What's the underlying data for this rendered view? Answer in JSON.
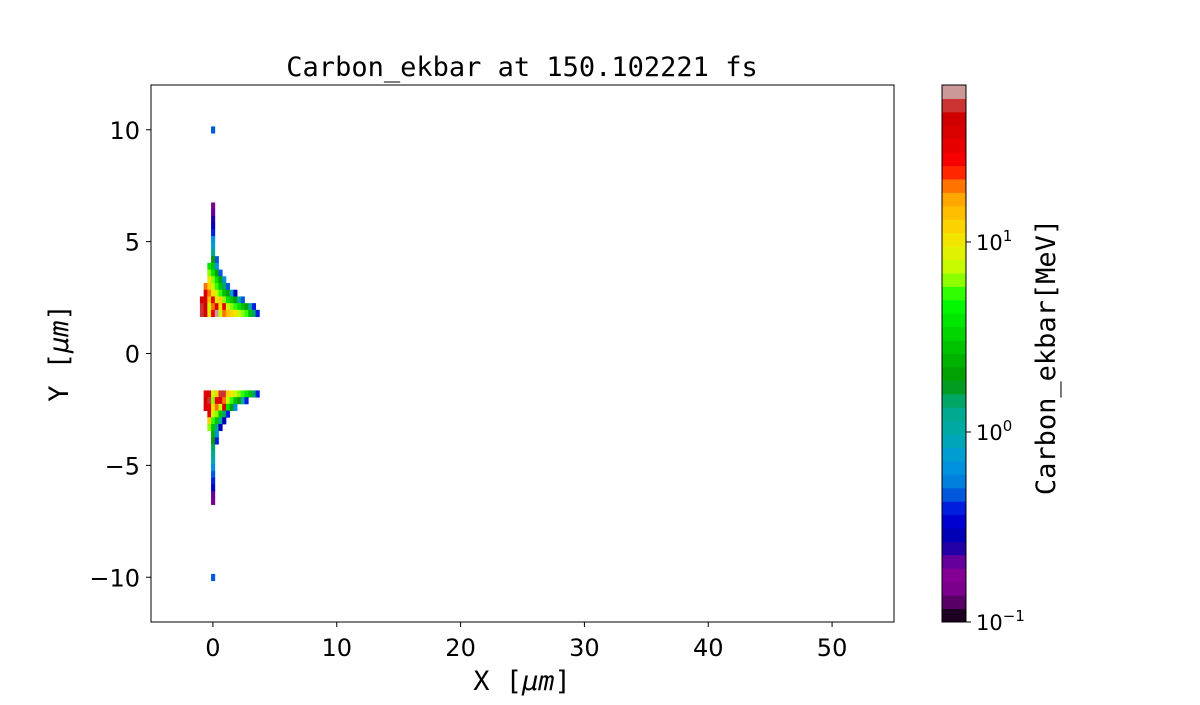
{
  "chart_data": {
    "type": "heatmap",
    "title": "Carbon_ekbar at 150.102221 fs",
    "xlabel": "X  [",
    "xlabel_unit": "μm",
    "xlabel_end": "]",
    "ylabel": "Y  [",
    "ylabel_unit": "μm",
    "ylabel_end": "]",
    "xlim": [
      -5,
      55
    ],
    "ylim": [
      -12,
      12
    ],
    "xticks": [
      0,
      10,
      20,
      30,
      40,
      50
    ],
    "xtick_labels": [
      "0",
      "10",
      "20",
      "30",
      "40",
      "50"
    ],
    "yticks": [
      10,
      5,
      0,
      -5,
      -10
    ],
    "ytick_labels": [
      "10",
      "5",
      "0",
      "−5",
      "−10"
    ],
    "colorbar": {
      "label": "Carbon_ekbar[MeV]",
      "scale": "log",
      "range": [
        0.1,
        67
      ],
      "ticks": [
        0.1,
        1,
        10
      ],
      "tick_labels": [
        {
          "base": "10",
          "exp": "−1"
        },
        {
          "base": "10",
          "exp": "0"
        },
        {
          "base": "10",
          "exp": "1"
        }
      ],
      "colormap": "nipy_spectral",
      "levels": 40
    },
    "cell_size_um": 0.3,
    "rows": [
      {
        "y": 10.0,
        "x0": 0,
        "v": [
          0.5
        ]
      },
      {
        "y": 6.6,
        "x0": 0,
        "v": [
          0.15
        ]
      },
      {
        "y": 6.3,
        "x0": 0,
        "v": [
          0.2
        ]
      },
      {
        "y": 6.0,
        "x0": 0,
        "v": [
          0.25
        ]
      },
      {
        "y": 5.7,
        "x0": 0,
        "v": [
          0.3
        ]
      },
      {
        "y": 5.4,
        "x0": 0,
        "v": [
          0.4
        ]
      },
      {
        "y": 5.1,
        "x0": 0,
        "v": [
          0.6
        ]
      },
      {
        "y": 4.8,
        "x0": 0,
        "v": [
          0.8
        ]
      },
      {
        "y": 4.5,
        "x0": 0,
        "v": [
          1.2
        ]
      },
      {
        "y": 4.2,
        "x0": 0,
        "v": [
          2,
          0.5
        ]
      },
      {
        "y": 3.9,
        "x0": -0.3,
        "v": [
          4,
          3,
          0.6
        ]
      },
      {
        "y": 3.6,
        "x0": -0.3,
        "v": [
          6,
          4,
          2,
          0.5
        ]
      },
      {
        "y": 3.3,
        "x0": -0.3,
        "v": [
          10,
          6,
          4,
          2,
          0.6
        ]
      },
      {
        "y": 3.0,
        "x0": -0.6,
        "v": [
          20,
          12,
          8,
          5,
          3,
          1.5,
          0.5
        ]
      },
      {
        "y": 2.7,
        "x0": -0.6,
        "v": [
          40,
          20,
          10,
          8,
          5,
          3,
          2,
          0.8,
          0.3
        ]
      },
      {
        "y": 2.4,
        "x0": -0.9,
        "v": [
          45,
          40,
          15,
          30,
          10,
          12,
          6,
          4,
          3,
          2,
          1,
          0.5
        ]
      },
      {
        "y": 2.1,
        "x0": -0.9,
        "v": [
          50,
          45,
          8,
          20,
          40,
          10,
          30,
          8,
          6,
          5,
          4,
          3,
          2,
          1,
          0.4
        ]
      },
      {
        "y": 1.8,
        "x0": -0.9,
        "v": [
          50,
          40,
          10,
          30,
          60,
          8,
          20,
          15,
          12,
          10,
          8,
          6,
          5,
          3,
          1.5,
          0.4
        ]
      },
      {
        "y": -1.8,
        "x0": -0.6,
        "v": [
          30,
          40,
          8,
          12,
          50,
          55,
          12,
          10,
          8,
          6,
          5,
          4,
          3,
          1.5,
          0.4
        ]
      },
      {
        "y": -2.1,
        "x0": -0.6,
        "v": [
          45,
          50,
          6,
          30,
          40,
          20,
          8,
          5,
          3,
          2,
          1,
          0.4
        ]
      },
      {
        "y": -2.4,
        "x0": -0.6,
        "v": [
          40,
          30,
          10,
          20,
          8,
          40,
          4,
          2,
          0.6
        ]
      },
      {
        "y": -2.7,
        "x0": -0.3,
        "v": [
          30,
          8,
          6,
          3,
          1.5,
          0.4
        ]
      },
      {
        "y": -3.0,
        "x0": -0.3,
        "v": [
          12,
          5,
          3,
          1,
          0.3
        ]
      },
      {
        "y": -3.3,
        "x0": -0.3,
        "v": [
          6,
          3,
          1.2,
          0.3
        ]
      },
      {
        "y": -3.6,
        "x0": 0,
        "v": [
          2.5,
          0.6
        ]
      },
      {
        "y": -3.9,
        "x0": 0,
        "v": [
          2,
          0.4
        ]
      },
      {
        "y": -4.2,
        "x0": 0,
        "v": [
          1.5
        ]
      },
      {
        "y": -4.5,
        "x0": 0,
        "v": [
          1.2
        ]
      },
      {
        "y": -4.8,
        "x0": 0,
        "v": [
          0.9
        ]
      },
      {
        "y": -5.1,
        "x0": 0,
        "v": [
          0.7
        ]
      },
      {
        "y": -5.4,
        "x0": 0,
        "v": [
          0.5
        ]
      },
      {
        "y": -5.7,
        "x0": 0,
        "v": [
          0.4
        ]
      },
      {
        "y": -6.0,
        "x0": 0,
        "v": [
          0.3
        ]
      },
      {
        "y": -6.3,
        "x0": 0,
        "v": [
          0.2
        ]
      },
      {
        "y": -6.6,
        "x0": 0,
        "v": [
          0.15
        ]
      },
      {
        "y": -10.0,
        "x0": 0,
        "v": [
          0.5
        ]
      }
    ]
  }
}
